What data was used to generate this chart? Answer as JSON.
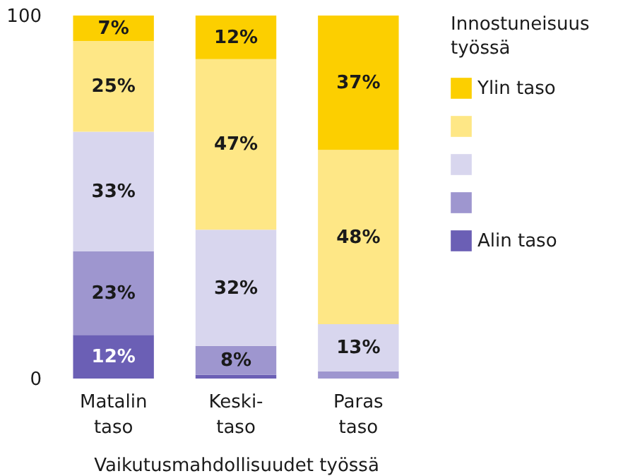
{
  "chart_data": {
    "type": "bar",
    "stacked": true,
    "xlabel": "Vaikutusmahdollisuudet työssä",
    "legend_title": "Innostuneisuus työssä",
    "legend": "right",
    "grid": false,
    "categories": [
      "Matalin taso",
      "Keski-taso",
      "Paras taso"
    ],
    "ylim": [
      0,
      100
    ],
    "yticks": [
      0,
      100
    ],
    "series": [
      {
        "name": "Alin taso",
        "color": "#6b5fb5",
        "values": [
          12,
          1,
          0
        ],
        "value_labels": [
          "12%",
          null,
          null
        ]
      },
      {
        "color": "#9e96cf",
        "values": [
          23,
          8,
          2
        ],
        "value_labels": [
          "23%",
          "8%",
          null
        ]
      },
      {
        "color": "#d8d6ee",
        "values": [
          33,
          32,
          13
        ],
        "value_labels": [
          "33%",
          "32%",
          "13%"
        ]
      },
      {
        "color": "#fee786",
        "values": [
          25,
          47,
          48
        ],
        "value_labels": [
          "25%",
          "47%",
          "48%"
        ]
      },
      {
        "name": "Ylin taso",
        "color": "#fccf00",
        "values": [
          7,
          12,
          37
        ],
        "value_labels": [
          "7%",
          "12%",
          "37%"
        ]
      }
    ]
  }
}
